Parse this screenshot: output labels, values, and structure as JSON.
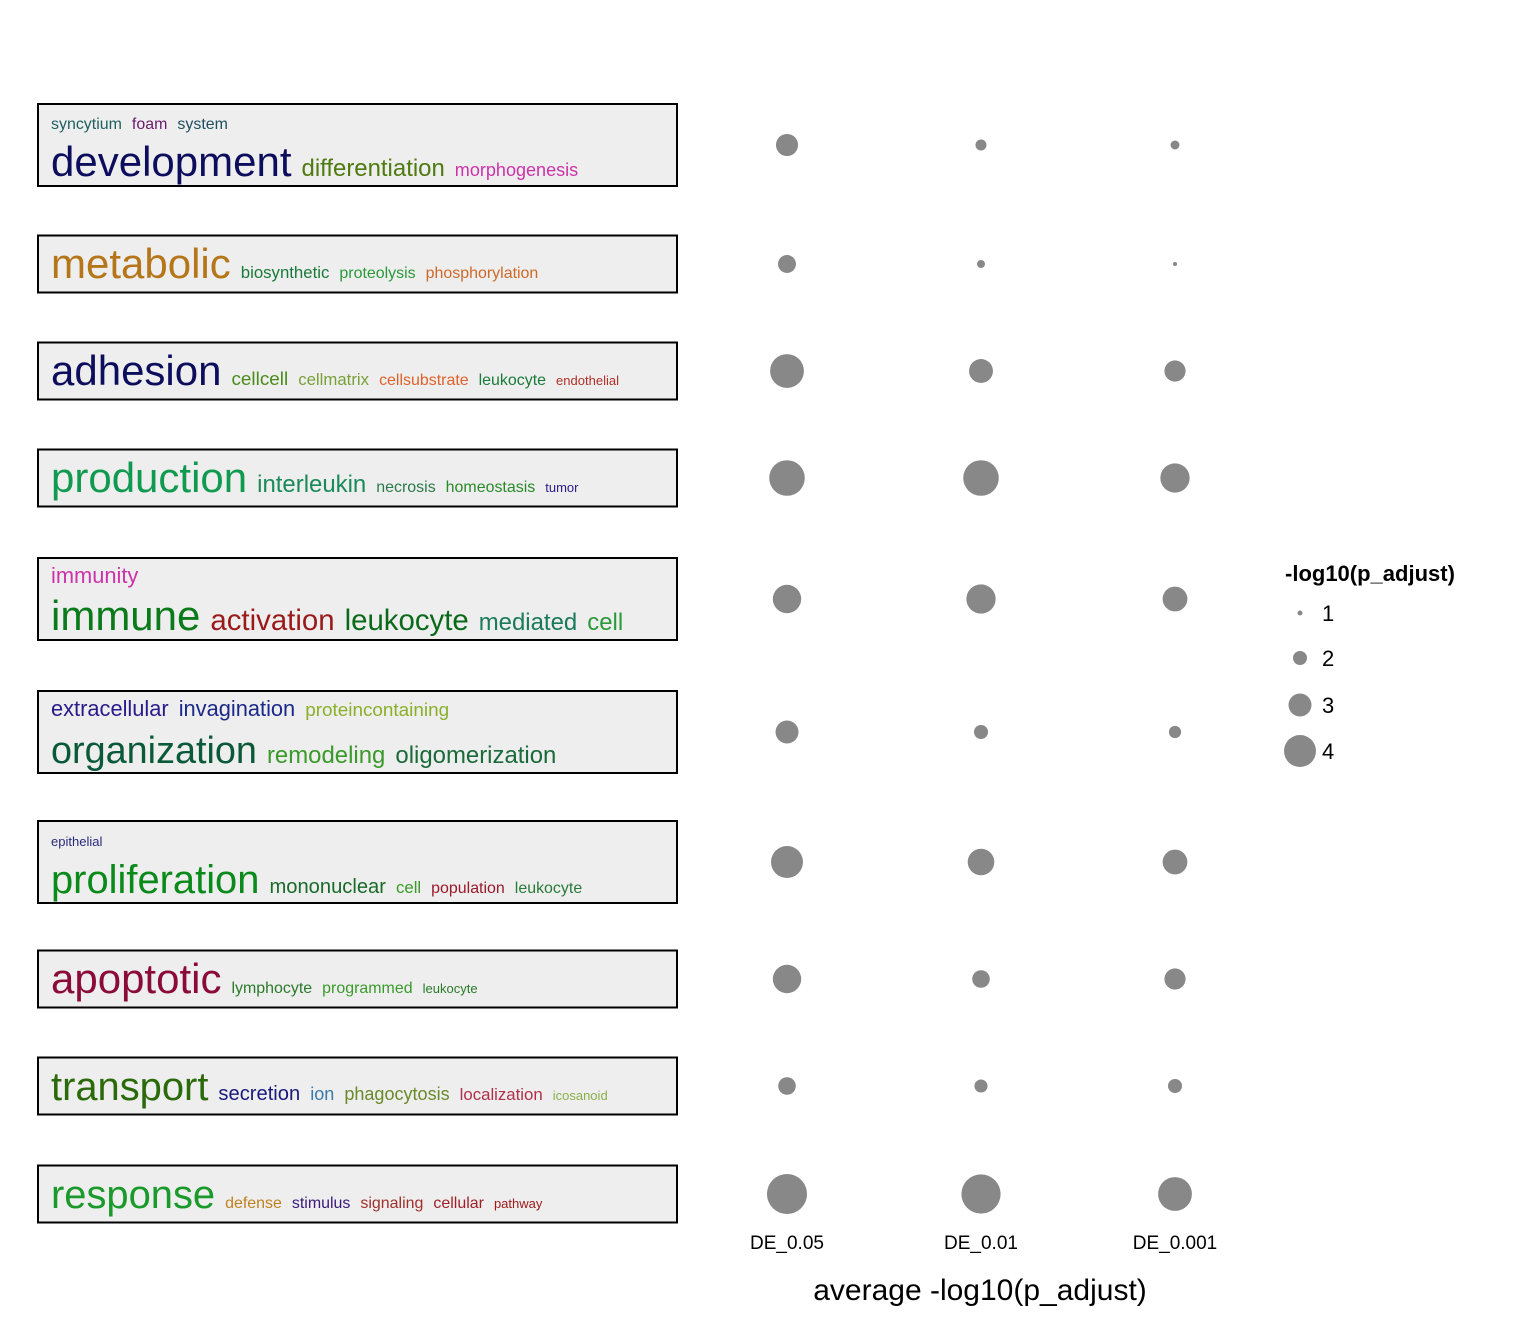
{
  "chart_data": {
    "type": "dotplot",
    "x_label": "average -log10(p_adjust)",
    "categories": [
      "DE_0.05",
      "DE_0.01",
      "DE_0.001"
    ],
    "color": "#888888",
    "legend_title": "-log10(p_adjust)",
    "legend_position": "right",
    "sizeticks": [
      1,
      2,
      3,
      4
    ],
    "rows": [
      {
        "lines": [
          [
            {
              "text": "syncytium",
              "color": "#1f5f5f",
              "weight": 3.8
            },
            {
              "text": "foam",
              "color": "#6a1b6a",
              "weight": 3.8
            },
            {
              "text": "system",
              "color": "#1f4f5f",
              "weight": 3.8
            }
          ],
          [
            {
              "text": "development",
              "color": "#0d0d5e",
              "weight": 10
            },
            {
              "text": "differentiation",
              "color": "#4f7a0f",
              "weight": 5.7
            },
            {
              "text": "morphogenesis",
              "color": "#cc33aa",
              "weight": 4.3
            }
          ]
        ],
        "values": [
          2.9,
          1.67,
          1.44
        ]
      },
      {
        "lines": [
          [
            {
              "text": "metabolic",
              "color": "#b5761a",
              "weight": 10
            },
            {
              "text": "biosynthetic",
              "color": "#1a7a3a",
              "weight": 4
            },
            {
              "text": "proteolysis",
              "color": "#2a9a3a",
              "weight": 3.8
            },
            {
              "text": "phosphorylation",
              "color": "#cc6a2a",
              "weight": 3.8
            }
          ]
        ],
        "values": [
          2.44,
          1.33,
          0.9
        ]
      },
      {
        "lines": [
          [
            {
              "text": "adhesion",
              "color": "#0d0d5e",
              "weight": 10
            },
            {
              "text": "cellcell",
              "color": "#4a8a1a",
              "weight": 4.5
            },
            {
              "text": "cellmatrix",
              "color": "#7aa03a",
              "weight": 4
            },
            {
              "text": "cellsubstrate",
              "color": "#e0602a",
              "weight": 3.8
            },
            {
              "text": "leukocyte",
              "color": "#1a7a3a",
              "weight": 3.8
            },
            {
              "text": "endothelial",
              "color": "#b0302a",
              "weight": 3.1
            }
          ]
        ],
        "values": [
          4.2,
          3.1,
          2.8
        ]
      },
      {
        "lines": [
          [
            {
              "text": "production",
              "color": "#109a50",
              "weight": 10
            },
            {
              "text": "interleukin",
              "color": "#1a8a5a",
              "weight": 5.7
            },
            {
              "text": "necrosis",
              "color": "#2a7a4a",
              "weight": 3.8
            },
            {
              "text": "homeostasis",
              "color": "#2a8a2a",
              "weight": 3.8
            },
            {
              "text": "tumor",
              "color": "#2a1a8a",
              "weight": 3.1
            }
          ]
        ],
        "values": [
          4.4,
          4.4,
          3.7
        ]
      },
      {
        "lines": [
          [
            {
              "text": "immunity",
              "color": "#cc33aa",
              "weight": 5.2
            }
          ],
          [
            {
              "text": "immune",
              "color": "#0a7a1a",
              "weight": 10
            },
            {
              "text": "activation",
              "color": "#9a1a1a",
              "weight": 7
            },
            {
              "text": "leukocyte",
              "color": "#0a6a1a",
              "weight": 7
            },
            {
              "text": "mediated",
              "color": "#1a7a5a",
              "weight": 5.7
            },
            {
              "text": "cell",
              "color": "#2a9a3a",
              "weight": 5.7
            }
          ]
        ],
        "values": [
          3.6,
          3.7,
          3.2
        ]
      },
      {
        "lines": [
          [
            {
              "text": "extracellular",
              "color": "#2a1a8a",
              "weight": 5.2
            },
            {
              "text": "invagination",
              "color": "#1a2a8a",
              "weight": 5.2
            },
            {
              "text": "proteincontaining",
              "color": "#8ab02a",
              "weight": 4.5
            }
          ],
          [
            {
              "text": "organization",
              "color": "#0a5a3a",
              "weight": 9
            },
            {
              "text": "remodeling",
              "color": "#3a9a2a",
              "weight": 5.7
            },
            {
              "text": "oligomerization",
              "color": "#1a6a3a",
              "weight": 5.7
            }
          ]
        ],
        "values": [
          3.0,
          2.0,
          1.8
        ]
      },
      {
        "lines": [
          [
            {
              "text": "epithelial",
              "color": "#2a2a7a",
              "weight": 3.1
            }
          ],
          [
            {
              "text": "proliferation",
              "color": "#0a8a1a",
              "weight": 9.5
            },
            {
              "text": "mononuclear",
              "color": "#1a6a2a",
              "weight": 4.8
            },
            {
              "text": "cell",
              "color": "#3a9a2a",
              "weight": 4
            },
            {
              "text": "population",
              "color": "#9a1a2a",
              "weight": 3.8
            },
            {
              "text": "leukocyte",
              "color": "#2a7a3a",
              "weight": 3.8
            }
          ]
        ],
        "values": [
          4.0,
          3.4,
          3.2
        ]
      },
      {
        "lines": [
          [
            {
              "text": "apoptotic",
              "color": "#8a0a3a",
              "weight": 10
            },
            {
              "text": "lymphocyte",
              "color": "#2a7a2a",
              "weight": 3.8
            },
            {
              "text": "programmed",
              "color": "#3a9a2a",
              "weight": 3.8
            },
            {
              "text": "leukocyte",
              "color": "#2a7a2a",
              "weight": 3.1
            }
          ]
        ],
        "values": [
          3.6,
          2.4,
          2.8
        ]
      },
      {
        "lines": [
          [
            {
              "text": "transport",
              "color": "#2a6a0a",
              "weight": 9.5
            },
            {
              "text": "secretion",
              "color": "#1a1a7a",
              "weight": 4.8
            },
            {
              "text": "ion",
              "color": "#3a7aaa",
              "weight": 4.3
            },
            {
              "text": "phagocytosis",
              "color": "#6a8a2a",
              "weight": 4.3
            },
            {
              "text": "localization",
              "color": "#b0304a",
              "weight": 4
            },
            {
              "text": "icosanoid",
              "color": "#8ab04a",
              "weight": 3.1
            }
          ]
        ],
        "values": [
          2.4,
          1.9,
          2.0
        ]
      },
      {
        "lines": [
          [
            {
              "text": "response",
              "color": "#1a9a2a",
              "weight": 9.5
            },
            {
              "text": "defense",
              "color": "#c08020",
              "weight": 3.8
            },
            {
              "text": "stimulus",
              "color": "#3a1a7a",
              "weight": 3.8
            },
            {
              "text": "signaling",
              "color": "#a0302a",
              "weight": 3.8
            },
            {
              "text": "cellular",
              "color": "#a0202a",
              "weight": 3.8
            },
            {
              "text": "pathway",
              "color": "#a01a1a",
              "weight": 3.1
            }
          ]
        ],
        "values": [
          4.9,
          4.8,
          4.2
        ]
      }
    ]
  }
}
